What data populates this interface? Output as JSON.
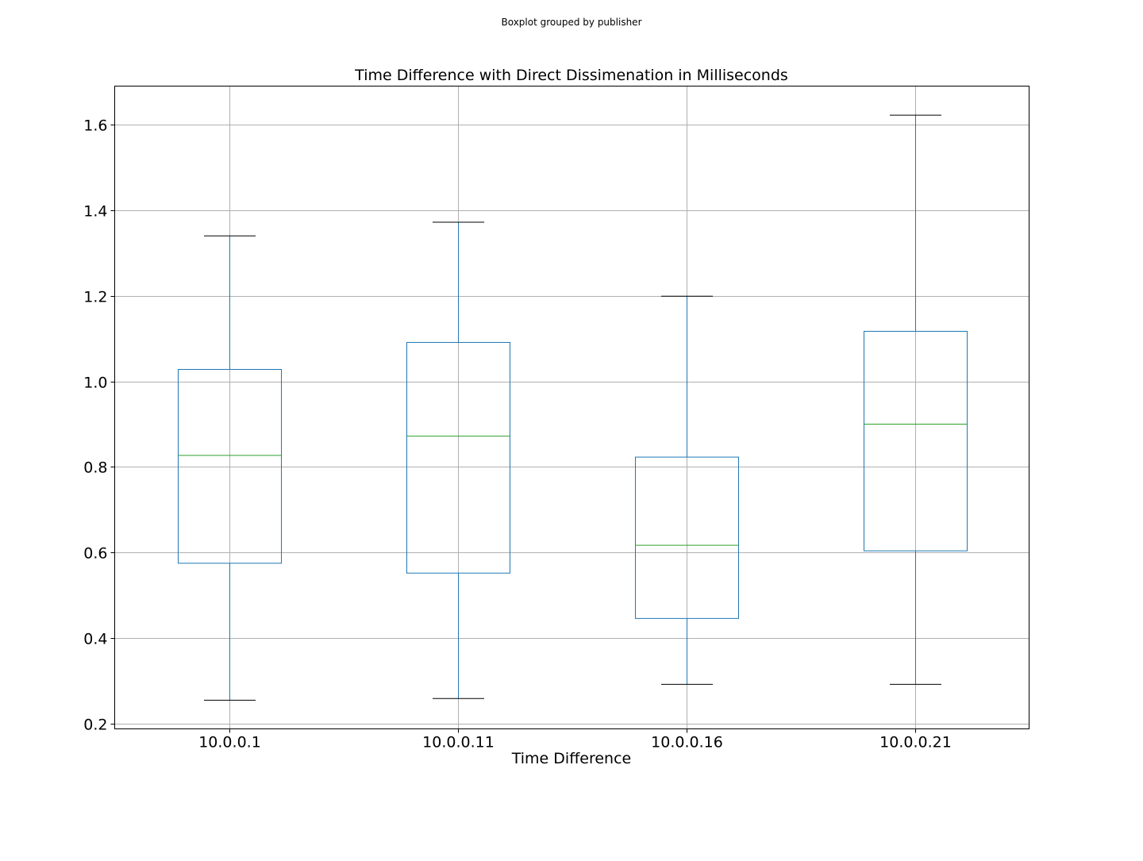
{
  "chart_data": {
    "type": "boxplot",
    "suptitle": "Boxplot grouped by publisher",
    "title": "Time Difference with Direct Dissimenation in Milliseconds",
    "xlabel": "Time Difference",
    "ylabel": "",
    "categories": [
      "10.0.0.1",
      "10.0.0.11",
      "10.0.0.16",
      "10.0.0.21"
    ],
    "boxes": [
      {
        "category": "10.0.0.1",
        "whisker_low": 0.255,
        "q1": 0.575,
        "median": 0.827,
        "q3": 1.028,
        "whisker_high": 1.34
      },
      {
        "category": "10.0.0.11",
        "whisker_low": 0.259,
        "q1": 0.552,
        "median": 0.872,
        "q3": 1.091,
        "whisker_high": 1.372
      },
      {
        "category": "10.0.0.16",
        "whisker_low": 0.292,
        "q1": 0.446,
        "median": 0.617,
        "q3": 0.823,
        "whisker_high": 1.199
      },
      {
        "category": "10.0.0.21",
        "whisker_low": 0.292,
        "q1": 0.604,
        "median": 0.9,
        "q3": 1.117,
        "whisker_high": 1.622
      }
    ],
    "yticks": [
      0.2,
      0.4,
      0.6,
      0.8,
      1.0,
      1.2,
      1.4,
      1.6
    ],
    "ytick_labels": [
      "0.2",
      "0.4",
      "0.6",
      "0.8",
      "1.0",
      "1.2",
      "1.4",
      "1.6"
    ],
    "ylim": [
      0.188,
      1.69
    ],
    "grid": true,
    "colors": {
      "box": "#1f77b4",
      "median": "#2ca02c",
      "whisker": "#1f77b4",
      "cap": "#000000",
      "grid": "#b0b0b0"
    }
  }
}
